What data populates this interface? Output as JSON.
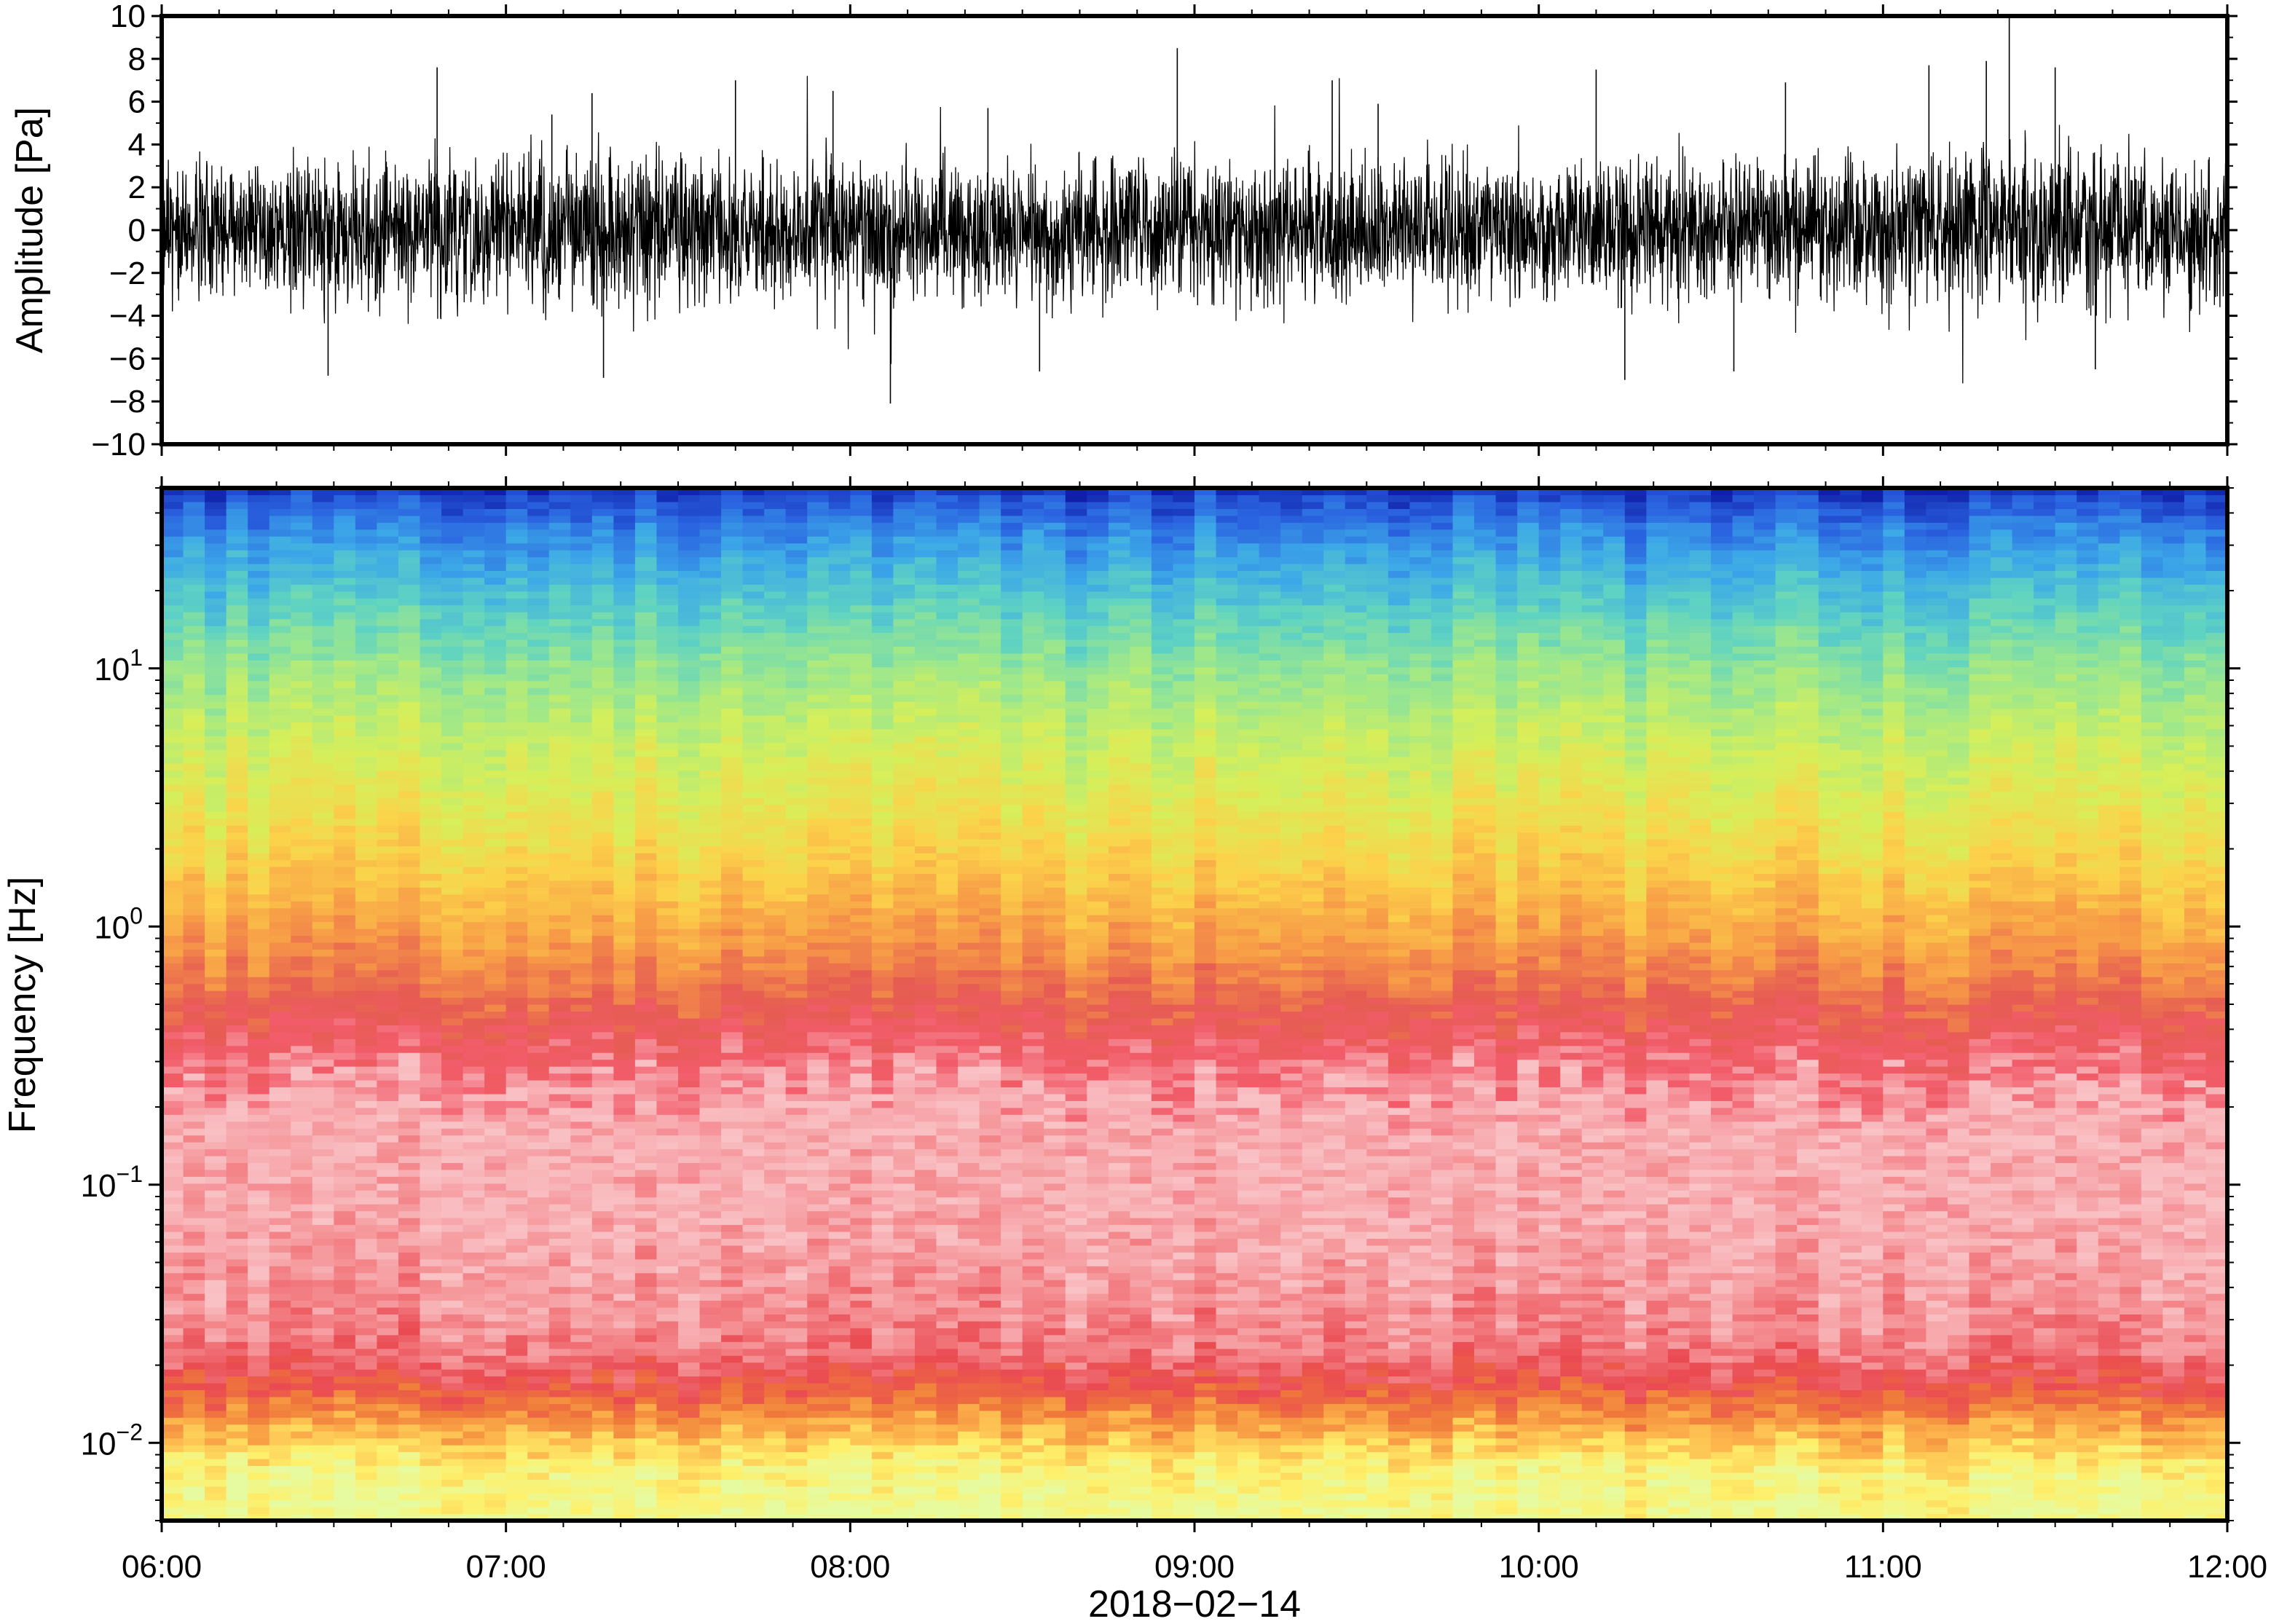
{
  "chart_data": [
    {
      "type": "line",
      "panel": "waveform",
      "ylabel": "Amplitude [Pa]",
      "xlabel": "",
      "xlim": [
        "06:00",
        "12:00"
      ],
      "ylim": [
        -10,
        10
      ],
      "y_ticks": [
        10,
        8,
        6,
        4,
        2,
        0,
        -2,
        -4,
        -6,
        -8,
        -10
      ],
      "y_tick_labels": [
        "10",
        "8",
        "6",
        "4",
        "2",
        "0",
        "−2",
        "−4",
        "−6",
        "−8",
        "−10"
      ],
      "x_ticks": [
        "06:00",
        "07:00",
        "08:00",
        "09:00",
        "10:00",
        "11:00",
        "12:00"
      ],
      "grid": false,
      "series": [
        {
          "color": "#000000",
          "envelope_times": [
            "06:00",
            "06:15",
            "06:30",
            "06:45",
            "07:00",
            "07:15",
            "07:30",
            "07:45",
            "08:00",
            "08:15",
            "08:30",
            "08:45",
            "09:00",
            "09:15",
            "09:30",
            "09:45",
            "10:00",
            "10:15",
            "10:30",
            "10:45",
            "11:00",
            "11:15",
            "11:30",
            "11:45",
            "12:00"
          ],
          "typical_amplitude": [
            2.6,
            2.4,
            2.7,
            2.6,
            2.5,
            3.0,
            2.8,
            2.7,
            2.7,
            2.5,
            2.6,
            2.6,
            2.7,
            2.6,
            2.6,
            2.5,
            2.5,
            2.4,
            2.4,
            2.5,
            2.6,
            3.0,
            2.9,
            2.7,
            2.6
          ],
          "peaks": [
            {
              "time": "06:29",
              "value": -6.8
            },
            {
              "time": "06:48",
              "value": 7.6
            },
            {
              "time": "07:08",
              "value": 5.4
            },
            {
              "time": "07:15",
              "value": 6.4
            },
            {
              "time": "07:17",
              "value": -6.9
            },
            {
              "time": "07:40",
              "value": 7.0
            },
            {
              "time": "07:57",
              "value": 6.5
            },
            {
              "time": "08:07",
              "value": -8.1
            },
            {
              "time": "08:24",
              "value": 5.7
            },
            {
              "time": "08:33",
              "value": -6.6
            },
            {
              "time": "08:57",
              "value": 8.5
            },
            {
              "time": "09:24",
              "value": 7.0
            },
            {
              "time": "09:32",
              "value": 5.9
            },
            {
              "time": "10:10",
              "value": 7.5
            },
            {
              "time": "10:15",
              "value": -7.0
            },
            {
              "time": "10:34",
              "value": -6.6
            },
            {
              "time": "10:43",
              "value": 6.9
            },
            {
              "time": "11:08",
              "value": 7.7
            },
            {
              "time": "11:18",
              "value": 7.9
            },
            {
              "time": "11:22",
              "value": 10.0
            },
            {
              "time": "11:30",
              "value": 7.6
            },
            {
              "time": "11:37",
              "value": -6.5
            }
          ]
        }
      ]
    },
    {
      "type": "heatmap",
      "panel": "spectrogram",
      "ylabel": "Frequency [Hz]",
      "xlabel": "2018−02−14",
      "y_scale": "log",
      "ylim": [
        0.005,
        50
      ],
      "y_ticks": [
        0.01,
        0.1,
        1,
        10
      ],
      "y_tick_labels": [
        {
          "base": "10",
          "exp": "−2"
        },
        {
          "base": "10",
          "exp": "−1"
        },
        {
          "base": "10",
          "exp": "0"
        },
        {
          "base": "10",
          "exp": "1"
        }
      ],
      "xlim": [
        "06:00",
        "12:00"
      ],
      "x_ticks": [
        "06:00",
        "07:00",
        "08:00",
        "09:00",
        "10:00",
        "11:00",
        "12:00"
      ],
      "x_tick_labels": [
        "06:00",
        "07:00",
        "08:00",
        "09:00",
        "10:00",
        "11:00",
        "12:00"
      ],
      "colormap": [
        "#e6fba0",
        "#fef06a",
        "#fdb54c",
        "#ef7a3a",
        "#ea4a52",
        "#f48b8f",
        "#f9c3c6",
        "#f25c6a",
        "#e65c52",
        "#f79a47",
        "#fcd24a",
        "#d6ef5a",
        "#9fe88a",
        "#5fd3c2",
        "#3ca8e8",
        "#2a63e0",
        "#0f1fa8"
      ],
      "spectrum_levels": [
        {
          "freq": 0.005,
          "level": 0.02
        },
        {
          "freq": 0.008,
          "level": 0.05
        },
        {
          "freq": 0.012,
          "level": 0.15
        },
        {
          "freq": 0.017,
          "level": 0.24
        },
        {
          "freq": 0.023,
          "level": 0.3
        },
        {
          "freq": 0.04,
          "level": 0.33
        },
        {
          "freq": 0.08,
          "level": 0.36
        },
        {
          "freq": 0.15,
          "level": 0.36
        },
        {
          "freq": 0.3,
          "level": 0.43
        },
        {
          "freq": 0.4,
          "level": 0.47
        },
        {
          "freq": 0.6,
          "level": 0.53
        },
        {
          "freq": 1.0,
          "level": 0.58
        },
        {
          "freq": 2.0,
          "level": 0.64
        },
        {
          "freq": 5.0,
          "level": 0.7
        },
        {
          "freq": 10,
          "level": 0.76
        },
        {
          "freq": 20,
          "level": 0.84
        },
        {
          "freq": 35,
          "level": 0.91
        },
        {
          "freq": 48,
          "level": 0.97
        },
        {
          "freq": 50,
          "level": 1.0
        }
      ]
    }
  ]
}
